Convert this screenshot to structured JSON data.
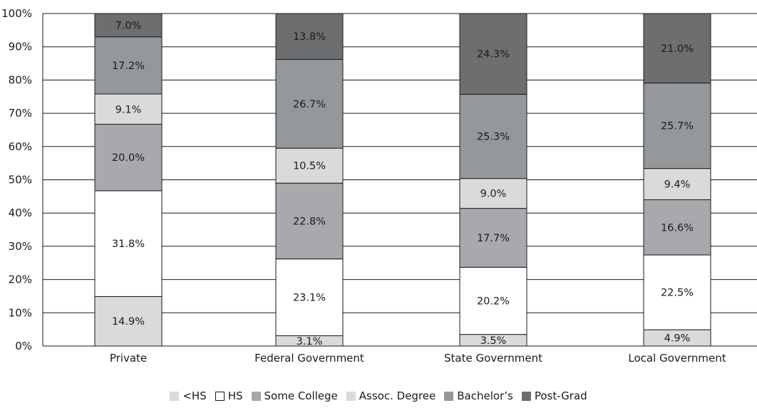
{
  "chart_data": {
    "type": "bar",
    "stacked": true,
    "categories": [
      "Private",
      "Federal Government",
      "State Government",
      "Local Government"
    ],
    "series": [
      {
        "name": "<HS",
        "color": "#dadada",
        "values": [
          14.9,
          3.1,
          3.5,
          4.9
        ]
      },
      {
        "name": "HS",
        "color": "#ffffff",
        "values": [
          31.8,
          23.1,
          20.2,
          22.5
        ]
      },
      {
        "name": "Some College",
        "color": "#a7a9ac",
        "values": [
          20.0,
          22.8,
          17.7,
          16.6
        ]
      },
      {
        "name": "Assoc. Degree",
        "color": "#dadada",
        "values": [
          9.1,
          10.5,
          9.0,
          9.4
        ]
      },
      {
        "name": "Bachelor’s",
        "color": "#95989b",
        "values": [
          17.2,
          26.7,
          25.3,
          25.7
        ]
      },
      {
        "name": "Post-Grad",
        "color": "#6d6e70",
        "values": [
          7.0,
          13.8,
          24.3,
          21.0
        ]
      }
    ],
    "data_labels": [
      [
        "14.9%",
        "3.1%",
        "3.5%",
        "4.9%"
      ],
      [
        "31.8%",
        "23.1%",
        "20.2%",
        "22.5%"
      ],
      [
        "20.0%",
        "22.8%",
        "17.7%",
        "16.6%"
      ],
      [
        "9.1%",
        "10.5%",
        "9.0%",
        "9.4%"
      ],
      [
        "17.2%",
        "26.7%",
        "25.3%",
        "25.7%"
      ],
      [
        "7.0%",
        "13.8%",
        "24.3%",
        "21.0%"
      ]
    ],
    "yticks": [
      "0%",
      "10%",
      "20%",
      "30%",
      "40%",
      "50%",
      "60%",
      "70%",
      "80%",
      "90%",
      "100%"
    ],
    "ylim": [
      0,
      100
    ],
    "grid": true,
    "legend_position": "bottom"
  }
}
